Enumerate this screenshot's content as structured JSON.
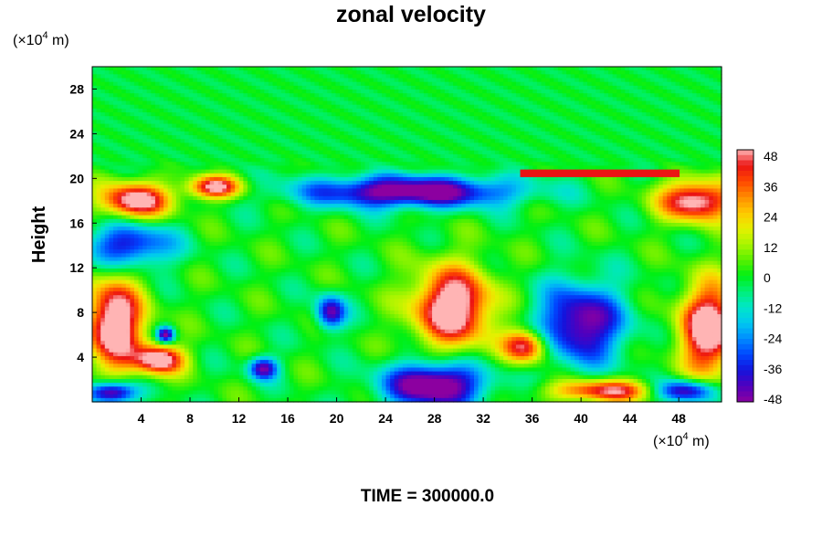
{
  "chart_data": {
    "type": "heatmap",
    "title": "zonal velocity",
    "ylabel": "Height",
    "y_unit_prefix": "(×10",
    "y_unit_exp": "4",
    "y_unit_suffix": " m)",
    "x_unit_prefix": "(×10",
    "x_unit_exp": "4",
    "x_unit_suffix": " m)",
    "xlim": [
      0,
      51.5
    ],
    "ylim": [
      0,
      30
    ],
    "x_ticks": [
      4,
      8,
      12,
      16,
      20,
      24,
      28,
      32,
      36,
      40,
      44,
      48
    ],
    "x_tick_labels": [
      "4",
      "8",
      "12",
      "16",
      "20",
      "24",
      "28",
      "32",
      "36",
      "40",
      "44",
      "48"
    ],
    "y_ticks": [
      4,
      8,
      12,
      16,
      20,
      24,
      28
    ],
    "y_tick_labels": [
      "4",
      "8",
      "12",
      "16",
      "20",
      "24",
      "28"
    ],
    "colorbar": {
      "min": -48,
      "max": 48,
      "ticks": [
        48,
        36,
        24,
        12,
        0,
        -12,
        -24,
        -36,
        -48
      ],
      "tick_labels": [
        "48",
        "36",
        "24",
        "12",
        "0",
        "-12",
        "-24",
        "-36",
        "-48"
      ]
    },
    "field_features": [
      {
        "kind": "positive",
        "x": 29.5,
        "y": 8.5,
        "sx": 3.2,
        "sy": 3.5,
        "v": 60
      },
      {
        "kind": "positive",
        "x": 1.8,
        "y": 7.0,
        "sx": 2.4,
        "sy": 4.0,
        "v": 60
      },
      {
        "kind": "positive",
        "x": 50.5,
        "y": 6.5,
        "sx": 2.4,
        "sy": 4.0,
        "v": 60
      },
      {
        "kind": "positive",
        "x": 5.5,
        "y": 3.8,
        "sx": 2.0,
        "sy": 1.3,
        "v": 55
      },
      {
        "kind": "positive",
        "x": 3.5,
        "y": 18.0,
        "sx": 2.8,
        "sy": 1.6,
        "v": 55
      },
      {
        "kind": "positive",
        "x": 49.5,
        "y": 18.0,
        "sx": 3.0,
        "sy": 1.8,
        "v": 55
      },
      {
        "kind": "positive",
        "x": 10.0,
        "y": 19.2,
        "sx": 2.2,
        "sy": 1.0,
        "v": 50
      },
      {
        "kind": "positive",
        "x": 35.5,
        "y": 5.0,
        "sx": 1.8,
        "sy": 1.5,
        "v": 50
      },
      {
        "kind": "positive",
        "x": 42.0,
        "y": 1.0,
        "sx": 4.5,
        "sy": 1.0,
        "v": 45
      },
      {
        "kind": "negative",
        "x": 26.0,
        "y": 18.8,
        "sx": 8.5,
        "sy": 1.4,
        "v": -55
      },
      {
        "kind": "negative",
        "x": 28.0,
        "y": 1.5,
        "sx": 4.0,
        "sy": 2.0,
        "v": -60
      },
      {
        "kind": "negative",
        "x": 40.0,
        "y": 7.0,
        "sx": 3.5,
        "sy": 3.5,
        "v": -50
      },
      {
        "kind": "negative",
        "x": 3.0,
        "y": 14.0,
        "sx": 3.5,
        "sy": 2.0,
        "v": -40
      },
      {
        "kind": "negative",
        "x": 1.5,
        "y": 0.8,
        "sx": 2.0,
        "sy": 1.0,
        "v": -55
      },
      {
        "kind": "negative",
        "x": 19.5,
        "y": 8.0,
        "sx": 1.2,
        "sy": 1.5,
        "v": -45
      },
      {
        "kind": "negative",
        "x": 14.0,
        "y": 3.0,
        "sx": 1.2,
        "sy": 1.0,
        "v": -45
      },
      {
        "kind": "negative",
        "x": 6.0,
        "y": 6.0,
        "sx": 0.7,
        "sy": 0.7,
        "v": -50
      },
      {
        "kind": "negative",
        "x": 48.5,
        "y": 1.0,
        "sx": 2.5,
        "sy": 1.0,
        "v": -50
      }
    ]
  },
  "footer": {
    "time_label": "TIME = 300000.0"
  }
}
